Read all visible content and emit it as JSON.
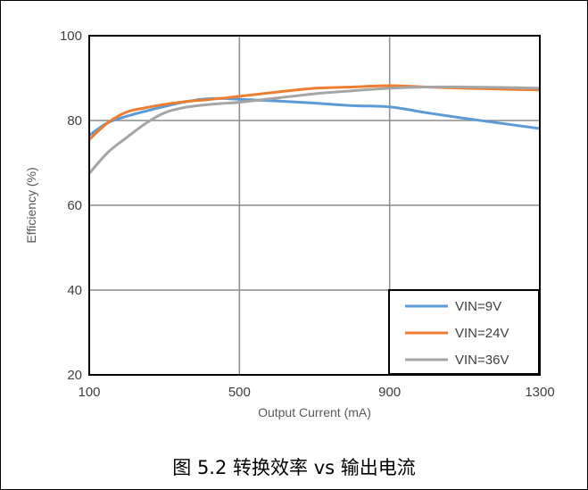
{
  "chart_data": {
    "type": "line",
    "title": "",
    "xlabel": "Output Current (mA)",
    "ylabel": "Efficiency (%)",
    "xlim": [
      100,
      1300
    ],
    "ylim": [
      20,
      100
    ],
    "xticks": [
      100,
      500,
      900,
      1300
    ],
    "yticks": [
      20,
      40,
      60,
      80,
      100
    ],
    "grid": true,
    "legend_position": "bottom-right",
    "series": [
      {
        "name": "VIN=9V",
        "color": "#5b9bd5",
        "x": [
          100,
          150,
          200,
          250,
          300,
          350,
          400,
          450,
          500,
          600,
          700,
          800,
          900,
          1000,
          1100,
          1200,
          1300
        ],
        "y": [
          76.5,
          79.5,
          81.0,
          82.2,
          83.3,
          84.3,
          85.0,
          85.2,
          85.0,
          84.6,
          84.1,
          83.5,
          83.2,
          81.8,
          80.5,
          79.3,
          78.1
        ]
      },
      {
        "name": "VIN=24V",
        "color": "#ed7d31",
        "x": [
          100,
          150,
          200,
          250,
          300,
          350,
          400,
          450,
          500,
          600,
          700,
          800,
          900,
          1000,
          1100,
          1200,
          1300
        ],
        "y": [
          75.5,
          79.5,
          82.0,
          83.0,
          83.8,
          84.4,
          84.8,
          85.2,
          85.7,
          86.7,
          87.6,
          87.9,
          88.2,
          87.9,
          87.6,
          87.4,
          87.2
        ]
      },
      {
        "name": "VIN=36V",
        "color": "#a5a5a5",
        "x": [
          100,
          150,
          200,
          250,
          300,
          350,
          400,
          450,
          500,
          600,
          700,
          800,
          900,
          1000,
          1100,
          1200,
          1300
        ],
        "y": [
          67.5,
          72.5,
          76.0,
          79.3,
          81.8,
          83.0,
          83.6,
          84.0,
          84.3,
          85.3,
          86.3,
          87.0,
          87.6,
          87.9,
          87.9,
          87.8,
          87.6
        ]
      }
    ]
  },
  "caption": "图 5.2 转换效率 vs 输出电流"
}
